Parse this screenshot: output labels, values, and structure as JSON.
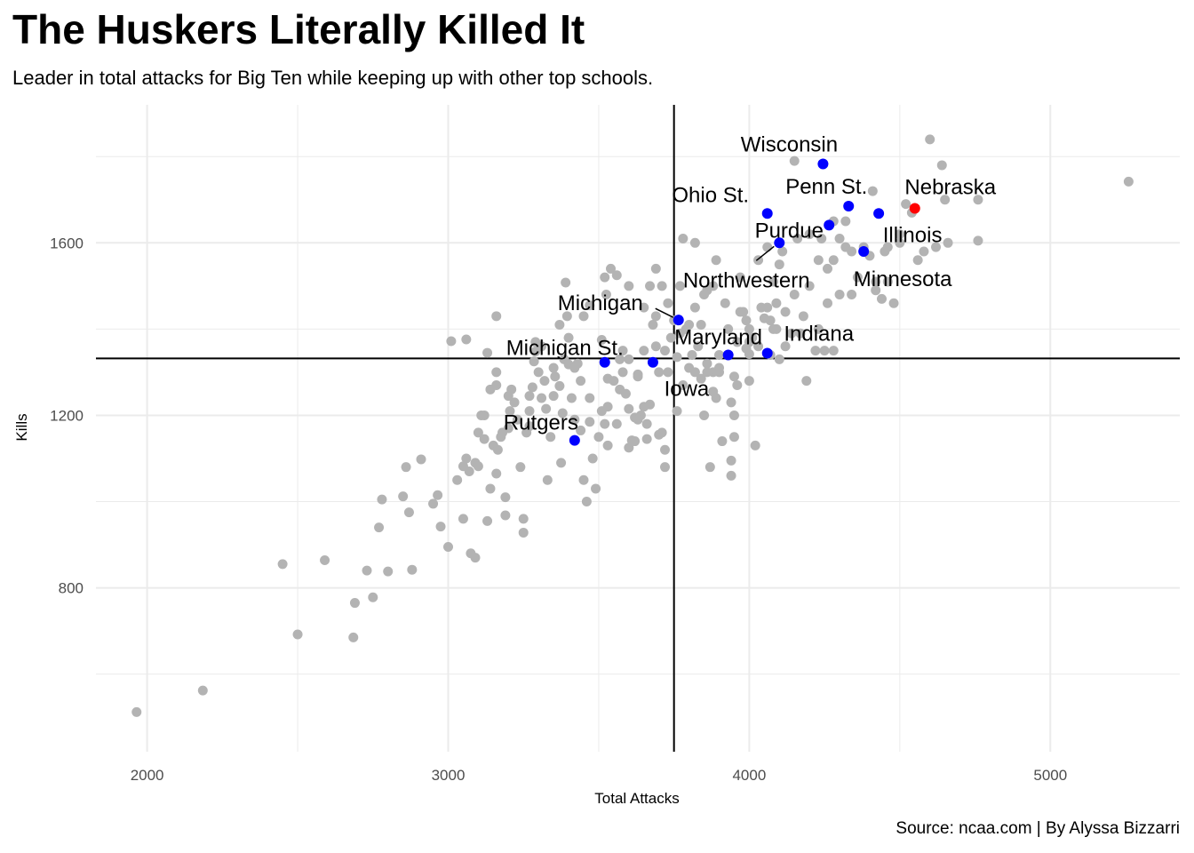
{
  "title": "The Huskers Literally Killed It",
  "subtitle": "Leader in total attacks for Big Ten while keeping up with other top schools.",
  "caption": "Source: ncaa.com | By Alyssa Bizzarri",
  "colors": {
    "other": "#b3b3b3",
    "big_ten": "#0000ff",
    "nebraska": "#ff0000",
    "grid": "#ebebeb",
    "reference_line": "#000000"
  },
  "chart_data": {
    "type": "scatter",
    "title": "The Huskers Literally Killed It",
    "subtitle": "Leader in total attacks for Big Ten while keeping up with other top schools.",
    "xlabel": "Total Attacks",
    "ylabel": "Kills",
    "xlim": [
      1830,
      5430
    ],
    "ylim": [
      420,
      1920
    ],
    "x_ticks": [
      2000,
      3000,
      4000,
      5000
    ],
    "y_ticks": [
      800,
      1200,
      1600
    ],
    "grid": true,
    "reference_lines": {
      "vertical_x": 3750,
      "horizontal_y": 1332
    },
    "other_schools": [
      [
        1965,
        512
      ],
      [
        2185,
        562
      ],
      [
        2450,
        855
      ],
      [
        2500,
        692
      ],
      [
        2590,
        864
      ],
      [
        2690,
        765
      ],
      [
        2685,
        685
      ],
      [
        2730,
        840
      ],
      [
        2750,
        778
      ],
      [
        2770,
        940
      ],
      [
        2780,
        1005
      ],
      [
        2800,
        838
      ],
      [
        2850,
        1012
      ],
      [
        2880,
        842
      ],
      [
        2860,
        1080
      ],
      [
        2870,
        975
      ],
      [
        2910,
        1098
      ],
      [
        2950,
        995
      ],
      [
        2965,
        1015
      ],
      [
        2975,
        942
      ],
      [
        3000,
        895
      ],
      [
        3030,
        1050
      ],
      [
        3010,
        1372
      ],
      [
        3050,
        960
      ],
      [
        3060,
        1100
      ],
      [
        3075,
        880
      ],
      [
        3050,
        1082
      ],
      [
        3070,
        1070
      ],
      [
        3090,
        870
      ],
      [
        3090,
        1090
      ],
      [
        3100,
        1082
      ],
      [
        3120,
        1145
      ],
      [
        3120,
        1200
      ],
      [
        3130,
        955
      ],
      [
        3140,
        1030
      ],
      [
        3150,
        1130
      ],
      [
        3160,
        1065
      ],
      [
        3165,
        1120
      ],
      [
        3175,
        1150
      ],
      [
        3180,
        1160
      ],
      [
        3190,
        968
      ],
      [
        3190,
        1010
      ],
      [
        3200,
        1170
      ],
      [
        3205,
        1210
      ],
      [
        3220,
        1230
      ],
      [
        3240,
        1080
      ],
      [
        3250,
        960
      ],
      [
        3250,
        928
      ],
      [
        3260,
        1160
      ],
      [
        3270,
        1175
      ],
      [
        3270,
        1245
      ],
      [
        3280,
        1265
      ],
      [
        3285,
        1325
      ],
      [
        3290,
        1348
      ],
      [
        3300,
        1300
      ],
      [
        3310,
        1360
      ],
      [
        3320,
        1280
      ],
      [
        3325,
        1215
      ],
      [
        3330,
        1050
      ],
      [
        3340,
        1150
      ],
      [
        3350,
        1245
      ],
      [
        3355,
        1290
      ],
      [
        3370,
        1268
      ],
      [
        3375,
        1090
      ],
      [
        3380,
        1205
      ],
      [
        3385,
        1330
      ],
      [
        3395,
        1430
      ],
      [
        3390,
        1508
      ],
      [
        3400,
        1318
      ],
      [
        3410,
        1240
      ],
      [
        3420,
        1190
      ],
      [
        3430,
        1320
      ],
      [
        3440,
        1165
      ],
      [
        3450,
        1050
      ],
      [
        3460,
        1000
      ],
      [
        3470,
        1240
      ],
      [
        3480,
        1100
      ],
      [
        3490,
        1030
      ],
      [
        3500,
        1150
      ],
      [
        3510,
        1375
      ],
      [
        3520,
        1520
      ],
      [
        3525,
        1480
      ],
      [
        3530,
        1220
      ],
      [
        3540,
        1540
      ],
      [
        3550,
        1280
      ],
      [
        3560,
        1180
      ],
      [
        3570,
        1330
      ],
      [
        3580,
        1350
      ],
      [
        3590,
        1250
      ],
      [
        3600,
        1215
      ],
      [
        3610,
        1142
      ],
      [
        3620,
        1140
      ],
      [
        3630,
        1290
      ],
      [
        3640,
        1200
      ],
      [
        3650,
        1350
      ],
      [
        3660,
        1180
      ],
      [
        3670,
        1225
      ],
      [
        3680,
        1410
      ],
      [
        3690,
        1430
      ],
      [
        3700,
        1300
      ],
      [
        3710,
        1160
      ],
      [
        3720,
        1080
      ],
      [
        3730,
        1300
      ],
      [
        3740,
        1380
      ],
      [
        3750,
        1420
      ],
      [
        3760,
        1335
      ],
      [
        3770,
        1390
      ],
      [
        3780,
        1270
      ],
      [
        3790,
        1400
      ],
      [
        3800,
        1410
      ],
      [
        3810,
        1340
      ],
      [
        3820,
        1300
      ],
      [
        3830,
        1360
      ],
      [
        3840,
        1410
      ],
      [
        3850,
        1200
      ],
      [
        3860,
        1490
      ],
      [
        3870,
        1080
      ],
      [
        3880,
        1300
      ],
      [
        3890,
        1240
      ],
      [
        3900,
        1310
      ],
      [
        3910,
        1140
      ],
      [
        3920,
        1460
      ],
      [
        3930,
        1400
      ],
      [
        3940,
        1230
      ],
      [
        3950,
        1290
      ],
      [
        3960,
        1370
      ],
      [
        3970,
        1520
      ],
      [
        3980,
        1440
      ],
      [
        3990,
        1355
      ],
      [
        4000,
        1280
      ],
      [
        4010,
        1380
      ],
      [
        4020,
        1130
      ],
      [
        4030,
        1560
      ],
      [
        4040,
        1450
      ],
      [
        4060,
        1590
      ],
      [
        4070,
        1420
      ],
      [
        4080,
        1510
      ],
      [
        4090,
        1400
      ],
      [
        4100,
        1550
      ],
      [
        4120,
        1440
      ],
      [
        4140,
        1390
      ],
      [
        4160,
        1610
      ],
      [
        4180,
        1430
      ],
      [
        4200,
        1500
      ],
      [
        4220,
        1350
      ],
      [
        4240,
        1610
      ],
      [
        4260,
        1540
      ],
      [
        4280,
        1560
      ],
      [
        4300,
        1610
      ],
      [
        4320,
        1650
      ],
      [
        4340,
        1480
      ],
      [
        4360,
        1520
      ],
      [
        4380,
        1590
      ],
      [
        4400,
        1570
      ],
      [
        4420,
        1490
      ],
      [
        4440,
        1470
      ],
      [
        4460,
        1510
      ],
      [
        4480,
        1460
      ],
      [
        4500,
        1620
      ],
      [
        4520,
        1690
      ],
      [
        4540,
        1670
      ],
      [
        4560,
        1560
      ],
      [
        4580,
        1580
      ],
      [
        4600,
        1840
      ],
      [
        4620,
        1590
      ],
      [
        4640,
        1780
      ],
      [
        4650,
        1700
      ],
      [
        4660,
        1600
      ],
      [
        4760,
        1700
      ],
      [
        4760,
        1605
      ],
      [
        5260,
        1742
      ],
      [
        3560,
        1525
      ],
      [
        3600,
        1500
      ],
      [
        3690,
        1540
      ],
      [
        3710,
        1500
      ],
      [
        3770,
        1500
      ],
      [
        3780,
        1610
      ],
      [
        3820,
        1600
      ],
      [
        3850,
        1480
      ],
      [
        3890,
        1560
      ],
      [
        3990,
        1420
      ],
      [
        4110,
        1580
      ],
      [
        4150,
        1790
      ],
      [
        4200,
        1620
      ],
      [
        4230,
        1560
      ],
      [
        4280,
        1650
      ],
      [
        4320,
        1590
      ],
      [
        4410,
        1720
      ],
      [
        4450,
        1580
      ],
      [
        4500,
        1600
      ],
      [
        3630,
        1295
      ],
      [
        3650,
        1220
      ],
      [
        3620,
        1195
      ],
      [
        3700,
        1155
      ],
      [
        3720,
        1120
      ],
      [
        3760,
        1210
      ],
      [
        3800,
        1310
      ],
      [
        3860,
        1300
      ],
      [
        3880,
        1255
      ],
      [
        3900,
        1340
      ],
      [
        3960,
        1270
      ],
      [
        4000,
        1400
      ],
      [
        4030,
        1360
      ],
      [
        4090,
        1460
      ],
      [
        4150,
        1480
      ],
      [
        4170,
        1390
      ],
      [
        4230,
        1400
      ],
      [
        4250,
        1350
      ],
      [
        4280,
        1350
      ],
      [
        4100,
        1330
      ],
      [
        4120,
        1360
      ],
      [
        4190,
        1280
      ],
      [
        4300,
        1480
      ],
      [
        4340,
        1580
      ],
      [
        4420,
        1510
      ],
      [
        4460,
        1590
      ],
      [
        4260,
        1460
      ],
      [
        4000,
        1370
      ],
      [
        3950,
        1150
      ],
      [
        3970,
        1440
      ],
      [
        3880,
        1500
      ],
      [
        3820,
        1450
      ],
      [
        3730,
        1460
      ],
      [
        3670,
        1500
      ],
      [
        3650,
        1450
      ],
      [
        3580,
        1300
      ],
      [
        3600,
        1330
      ],
      [
        3570,
        1260
      ],
      [
        3520,
        1180
      ],
      [
        3530,
        1285
      ],
      [
        3470,
        1185
      ],
      [
        3440,
        1280
      ],
      [
        3420,
        1310
      ],
      [
        3400,
        1380
      ],
      [
        3370,
        1410
      ],
      [
        3350,
        1310
      ],
      [
        3310,
        1240
      ],
      [
        3290,
        1370
      ],
      [
        3270,
        1210
      ],
      [
        3230,
        1190
      ],
      [
        3210,
        1260
      ],
      [
        3200,
        1245
      ],
      [
        3160,
        1270
      ],
      [
        3160,
        1300
      ],
      [
        3140,
        1260
      ],
      [
        3130,
        1345
      ],
      [
        3110,
        1200
      ],
      [
        3100,
        1160
      ],
      [
        3060,
        1376
      ],
      [
        3160,
        1430
      ],
      [
        3450,
        1430
      ],
      [
        3470,
        1455
      ],
      [
        3510,
        1210
      ],
      [
        3530,
        1130
      ],
      [
        3600,
        1125
      ],
      [
        3630,
        1190
      ],
      [
        3660,
        1145
      ],
      [
        3690,
        1360
      ],
      [
        3720,
        1350
      ],
      [
        3840,
        1285
      ],
      [
        3860,
        1320
      ],
      [
        3900,
        1300
      ],
      [
        3940,
        1060
      ],
      [
        3940,
        1095
      ],
      [
        3950,
        1200
      ],
      [
        4000,
        1342
      ],
      [
        4050,
        1425
      ],
      [
        4060,
        1450
      ],
      [
        4070,
        1340
      ],
      [
        4080,
        1400
      ]
    ],
    "big_ten": [
      {
        "name": "Wisconsin",
        "x": 4245,
        "y": 1783,
        "color": "blue"
      },
      {
        "name": "Ohio St.",
        "x": 4060,
        "y": 1668,
        "color": "blue"
      },
      {
        "name": "Penn St.",
        "x": 4330,
        "y": 1685,
        "color": "blue"
      },
      {
        "name": "Nebraska",
        "x": 4550,
        "y": 1680,
        "color": "red"
      },
      {
        "name": "Illinois",
        "x": 4430,
        "y": 1668,
        "color": "blue"
      },
      {
        "name": "Purdue",
        "x": 4100,
        "y": 1600,
        "color": "blue"
      },
      {
        "name": "Northwestern",
        "x": 4265,
        "y": 1641,
        "color": "blue"
      },
      {
        "name": "Minnesota",
        "x": 4380,
        "y": 1580,
        "color": "blue"
      },
      {
        "name": "Michigan",
        "x": 3765,
        "y": 1421,
        "color": "blue"
      },
      {
        "name": "Maryland",
        "x": 3930,
        "y": 1340,
        "color": "blue"
      },
      {
        "name": "Indiana",
        "x": 4060,
        "y": 1344,
        "color": "blue"
      },
      {
        "name": "Michigan St.",
        "x": 3520,
        "y": 1323,
        "color": "blue"
      },
      {
        "name": "Iowa",
        "x": 3680,
        "y": 1323,
        "color": "blue"
      },
      {
        "name": "Rutgers",
        "x": 3420,
        "y": 1142,
        "color": "blue"
      }
    ]
  }
}
